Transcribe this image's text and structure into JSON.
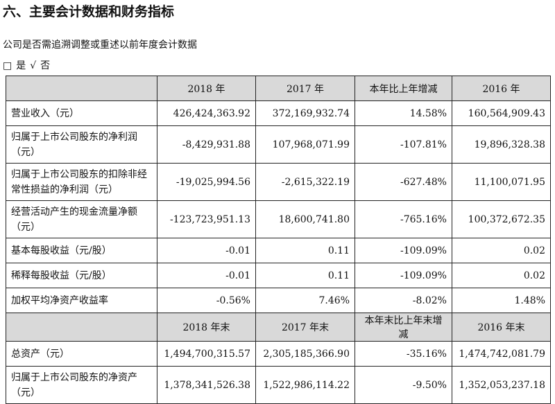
{
  "heading": "六、主要会计数据和财务指标",
  "subtitle": "公司是否需追溯调整或重述以前年度会计数据",
  "choice": {
    "box": "□",
    "yes": "是",
    "check": "√",
    "no": "否"
  },
  "table": {
    "header1": [
      "2018 年",
      "2017 年",
      "本年比上年增减",
      "2016 年"
    ],
    "rows1": [
      {
        "label": "营业收入（元）",
        "values": [
          "426,424,363.92",
          "372,169,932.74",
          "14.58%",
          "160,564,909.43"
        ]
      },
      {
        "label": "归属于上市公司股东的净利润（元）",
        "values": [
          "-8,429,931.88",
          "107,968,071.99",
          "-107.81%",
          "19,896,328.38"
        ]
      },
      {
        "label": "归属于上市公司股东的扣除非经常性损益的净利润（元）",
        "values": [
          "-19,025,994.56",
          "-2,615,322.19",
          "-627.48%",
          "11,100,071.95"
        ]
      },
      {
        "label": "经营活动产生的现金流量净额（元）",
        "values": [
          "-123,723,951.13",
          "18,600,741.80",
          "-765.16%",
          "100,372,672.35"
        ]
      },
      {
        "label": "基本每股收益（元/股）",
        "values": [
          "-0.01",
          "0.11",
          "-109.09%",
          "0.02"
        ]
      },
      {
        "label": "稀释每股收益（元/股）",
        "values": [
          "-0.01",
          "0.11",
          "-109.09%",
          "0.02"
        ]
      },
      {
        "label": "加权平均净资产收益率",
        "values": [
          "-0.56%",
          "7.46%",
          "-8.02%",
          "1.48%"
        ]
      }
    ],
    "header2": [
      "2018 年末",
      "2017 年末",
      "本年末比上年末增减",
      "2016 年末"
    ],
    "rows2": [
      {
        "label": "总资产（元）",
        "values": [
          "1,494,700,315.57",
          "2,305,185,366.90",
          "-35.16%",
          "1,474,742,081.79"
        ]
      },
      {
        "label": "归属于上市公司股东的净资产（元）",
        "values": [
          "1,378,341,526.38",
          "1,522,986,114.22",
          "-9.50%",
          "1,352,053,237.18"
        ]
      }
    ]
  }
}
